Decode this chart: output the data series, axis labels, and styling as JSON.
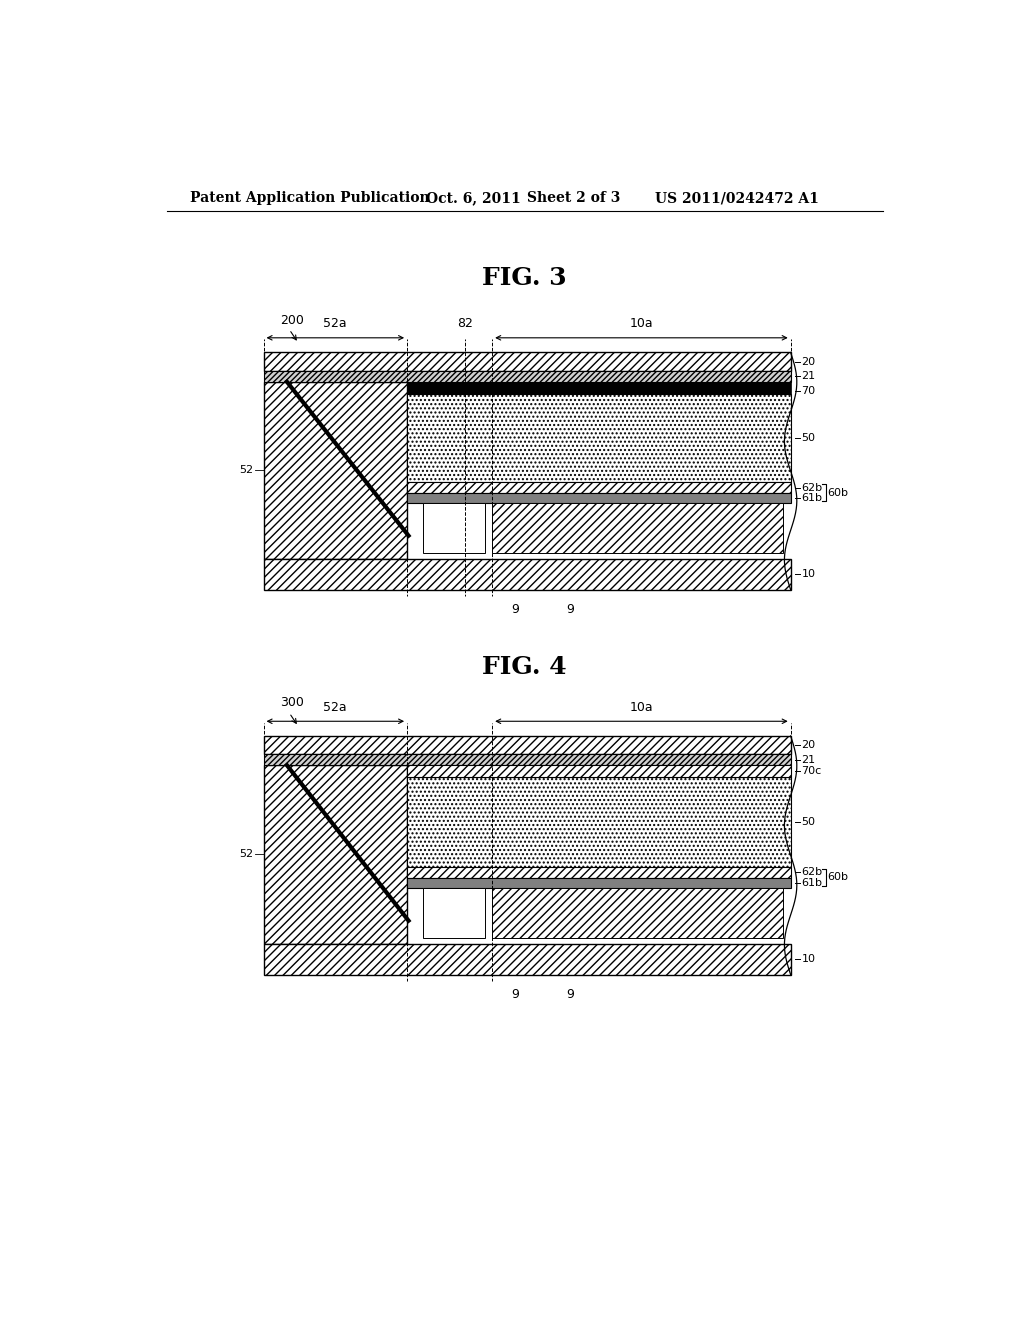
{
  "bg_color": "#ffffff",
  "header_text": "Patent Application Publication",
  "header_date": "Oct. 6, 2011",
  "header_sheet": "Sheet 2 of 3",
  "header_patent": "US 2011/0242472 A1",
  "fig3_title": "FIG. 3",
  "fig4_title": "FIG. 4"
}
